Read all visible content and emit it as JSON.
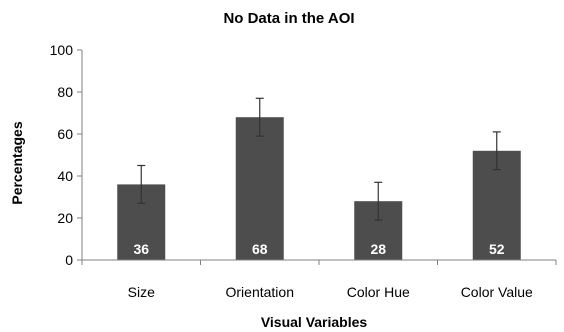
{
  "chart_data": {
    "type": "bar",
    "title": "No Data in the AOI",
    "xlabel": "Visual Variables",
    "ylabel": "Percentages",
    "ylim": [
      0,
      100
    ],
    "yticks": [
      0,
      20,
      40,
      60,
      80,
      100
    ],
    "categories": [
      "Size",
      "Orientation",
      "Color Hue",
      "Color Value"
    ],
    "values": [
      36,
      68,
      28,
      52
    ],
    "error_low": [
      27,
      59,
      19,
      43
    ],
    "error_high": [
      45,
      77,
      37,
      61
    ],
    "data_labels": [
      "36",
      "68",
      "28",
      "52"
    ],
    "grid": false,
    "legend": "none",
    "bar_color": "#4d4d4d",
    "axis_color": "#808080"
  }
}
